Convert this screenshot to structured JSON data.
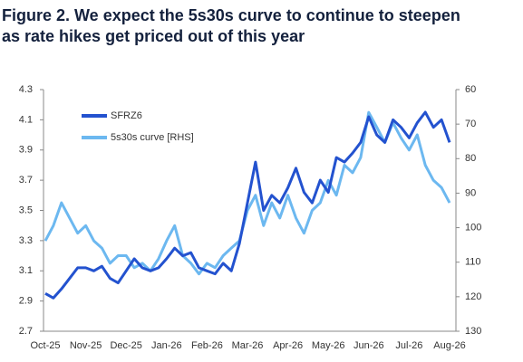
{
  "chart_data": {
    "type": "line",
    "title": [
      "Figure 2. We expect the 5s30s curve to continue to steepen",
      "as rate hikes get priced out of this year"
    ],
    "categories": [
      "Oct-25",
      null,
      null,
      null,
      null,
      "Nov-25",
      null,
      null,
      null,
      null,
      "Dec-25",
      null,
      null,
      null,
      null,
      "Jan-26",
      null,
      null,
      null,
      null,
      "Feb-26",
      null,
      null,
      null,
      null,
      "Mar-26",
      null,
      null,
      null,
      null,
      "Apr-26",
      null,
      null,
      null,
      null,
      "May-26",
      null,
      null,
      null,
      null,
      "Jun-26",
      null,
      null,
      null,
      null,
      "Jul-26",
      null,
      null,
      null,
      null,
      "Aug-26"
    ],
    "series": [
      {
        "name": "SFRZ6",
        "color": "#2352cf",
        "axis": "y",
        "values": [
          2.95,
          2.92,
          2.98,
          3.05,
          3.12,
          3.12,
          3.1,
          3.13,
          3.05,
          3.02,
          3.1,
          3.18,
          3.12,
          3.1,
          3.12,
          3.18,
          3.25,
          3.2,
          3.22,
          3.12,
          3.1,
          3.08,
          3.15,
          3.1,
          3.28,
          3.55,
          3.82,
          3.5,
          3.6,
          3.55,
          3.65,
          3.78,
          3.62,
          3.55,
          3.7,
          3.62,
          3.85,
          3.82,
          3.88,
          3.95,
          4.12,
          4.0,
          3.95,
          4.1,
          4.05,
          3.98,
          4.08,
          4.15,
          4.05,
          4.1,
          3.95
        ]
      },
      {
        "name": "5s30s curve [RHS]",
        "color": "#6cb8f0",
        "axis": "y2",
        "values": [
          103.8,
          99.4,
          92.8,
          97.2,
          101.6,
          99.4,
          103.8,
          105.9,
          110.3,
          108.1,
          108.1,
          111.6,
          110.3,
          112.5,
          109.0,
          103.8,
          99.4,
          108.1,
          110.3,
          113.4,
          110.3,
          111.6,
          108.1,
          105.9,
          103.8,
          95.0,
          90.6,
          99.4,
          92.8,
          97.2,
          90.6,
          97.2,
          101.6,
          95.0,
          92.8,
          86.3,
          90.6,
          81.9,
          84.1,
          79.7,
          66.6,
          70.9,
          75.3,
          69.6,
          74.0,
          77.5,
          73.1,
          81.9,
          86.3,
          88.4,
          92.8
        ]
      }
    ],
    "ylim": [
      2.7,
      4.3
    ],
    "yticks": [
      2.7,
      2.9,
      3.1,
      3.3,
      3.5,
      3.7,
      3.9,
      4.1,
      4.3
    ],
    "y2lim": [
      130,
      60
    ],
    "y2ticks": [
      60,
      70,
      80,
      90,
      100,
      110,
      120,
      130
    ],
    "legend": "upper left",
    "grid": false
  }
}
